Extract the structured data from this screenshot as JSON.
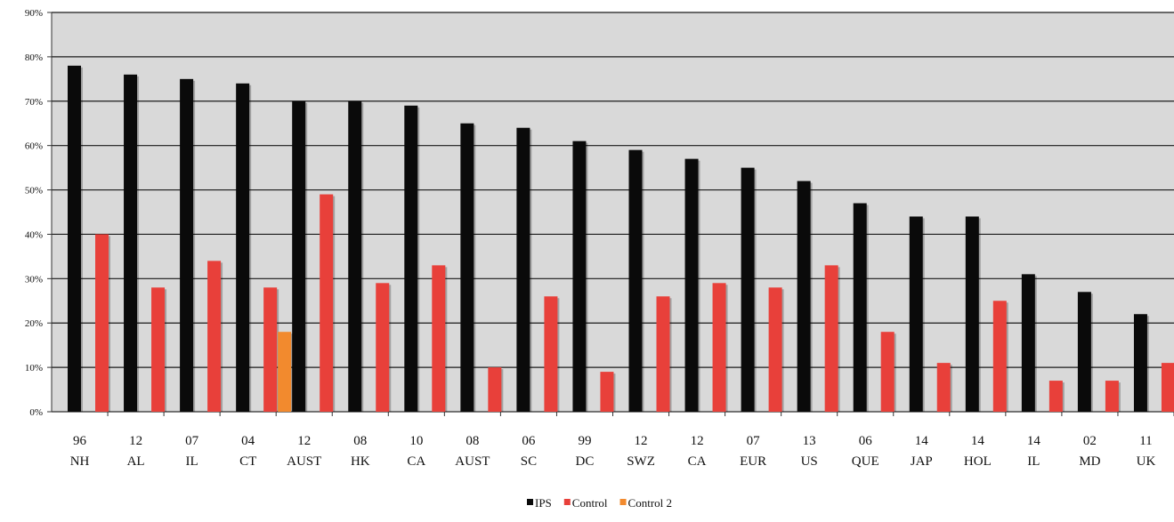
{
  "chart_data": {
    "type": "bar",
    "title": "",
    "xlabel": "",
    "ylabel": "",
    "ylim": [
      0,
      90
    ],
    "y_ticks": [
      "0%",
      "10%",
      "20%",
      "30%",
      "40%",
      "50%",
      "60%",
      "70%",
      "80%",
      "90%"
    ],
    "grid": true,
    "legend_position": "bottom-center",
    "categories": [
      {
        "year": "96",
        "site": "NH"
      },
      {
        "year": "12",
        "site": "AL"
      },
      {
        "year": "07",
        "site": "IL"
      },
      {
        "year": "04",
        "site": "CT"
      },
      {
        "year": "12",
        "site": "AUST"
      },
      {
        "year": "08",
        "site": "HK"
      },
      {
        "year": "10",
        "site": "CA"
      },
      {
        "year": "08",
        "site": "AUST"
      },
      {
        "year": "06",
        "site": "SC"
      },
      {
        "year": "99",
        "site": "DC"
      },
      {
        "year": "12",
        "site": "SWZ"
      },
      {
        "year": "12",
        "site": "CA"
      },
      {
        "year": "07",
        "site": "EUR"
      },
      {
        "year": "13",
        "site": "US"
      },
      {
        "year": "06",
        "site": "QUE"
      },
      {
        "year": "14",
        "site": "JAP"
      },
      {
        "year": "14",
        "site": "HOL"
      },
      {
        "year": "14",
        "site": "IL"
      },
      {
        "year": "02",
        "site": "MD"
      },
      {
        "year": "11",
        "site": "UK"
      }
    ],
    "series": [
      {
        "name": "IPS",
        "color": "#0a0a0a",
        "values": [
          78,
          76,
          75,
          74,
          70,
          70,
          69,
          65,
          64,
          61,
          59,
          57,
          55,
          52,
          47,
          44,
          44,
          31,
          27,
          22
        ]
      },
      {
        "name": "Control",
        "color": "#e8403a",
        "values": [
          40,
          28,
          34,
          28,
          49,
          29,
          33,
          10,
          26,
          9,
          26,
          29,
          28,
          33,
          18,
          11,
          25,
          7,
          7,
          11
        ]
      },
      {
        "name": "Control 2",
        "color": "#f28a2e",
        "values": [
          null,
          null,
          null,
          18,
          null,
          null,
          null,
          null,
          null,
          null,
          null,
          null,
          null,
          null,
          null,
          null,
          null,
          null,
          null,
          null
        ]
      }
    ],
    "colors": {
      "plot_background": "#d9d9d9",
      "gridline": "#1a1a1a",
      "axis": "#333333"
    }
  }
}
